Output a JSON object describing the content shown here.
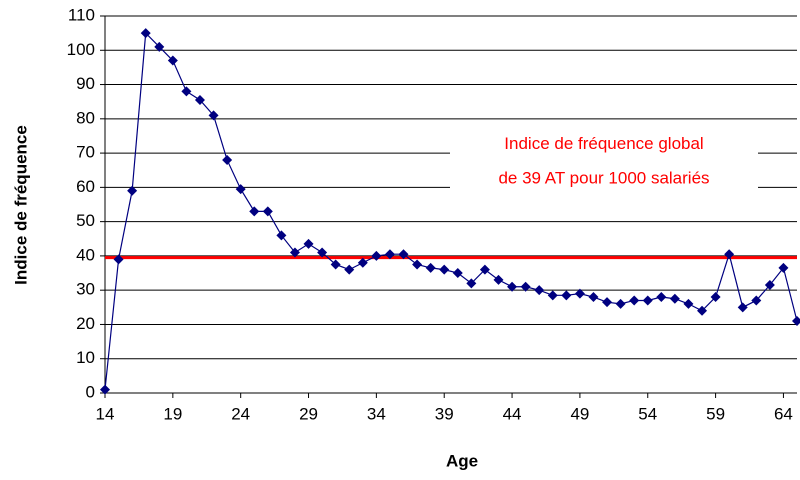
{
  "chart_data": {
    "type": "line",
    "x_label": "Age",
    "y_label": "Indice de fréquence",
    "annotation": [
      "Indice de fréquence global",
      "de 39 AT pour 1000 salariés"
    ],
    "annotation_color": "#ff0000",
    "reference_line": {
      "value": 39.5,
      "color": "#ff0000"
    },
    "x": [
      14,
      15,
      16,
      17,
      18,
      19,
      20,
      21,
      22,
      23,
      24,
      25,
      26,
      27,
      28,
      29,
      30,
      31,
      32,
      33,
      34,
      35,
      36,
      37,
      38,
      39,
      40,
      41,
      42,
      43,
      44,
      45,
      46,
      47,
      48,
      49,
      50,
      51,
      52,
      53,
      54,
      55,
      56,
      57,
      58,
      59,
      60,
      61,
      62,
      63,
      64,
      65
    ],
    "series": [
      {
        "name": "Indice",
        "color": "#000080",
        "values": [
          1,
          39,
          59,
          105,
          101,
          97,
          88,
          85.5,
          81,
          68,
          59.5,
          53,
          53,
          46,
          41,
          43.5,
          41,
          37.5,
          36,
          38,
          40,
          40.5,
          40.5,
          37.5,
          36.5,
          36,
          35,
          32,
          36,
          33,
          31,
          31,
          30,
          28.5,
          28.5,
          29,
          28,
          26.5,
          26,
          27,
          27,
          28,
          27.5,
          26,
          24,
          28,
          40.5,
          25,
          27,
          31.5,
          36.5,
          21
        ]
      }
    ],
    "xlim": [
      14,
      65
    ],
    "xticks": [
      14,
      19,
      24,
      29,
      34,
      39,
      44,
      49,
      54,
      59,
      64
    ],
    "ylim": [
      0,
      110
    ],
    "yticks": [
      0,
      10,
      20,
      30,
      40,
      50,
      60,
      70,
      80,
      90,
      100,
      110
    ],
    "grid": true
  }
}
